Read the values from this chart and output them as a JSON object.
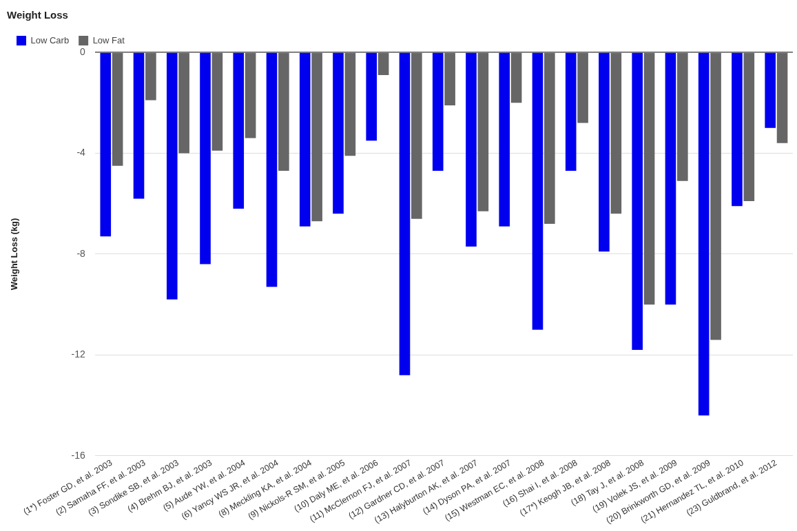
{
  "chart_data": {
    "type": "bar",
    "title": "Weight Loss",
    "ylabel": "Weight Loss (kg)",
    "categories": [
      "(1*) Foster GD, et al. 2003",
      "(2) Samaha FF, et al. 2003",
      "(3) Sondike SB, et al. 2003",
      "(4) Brehm BJ, et al. 2003",
      "(5) Aude YW, et al. 2004",
      "(6) Yancy WS JR, et al. 2004",
      "(8) Meckling KA, et al. 2004",
      "(9) Nickols-R SM, et al. 2005",
      "(10) Daly ME, et al. 2006",
      "(11) McClernon FJ, et al. 2007",
      "(12) Gardner CD, et al. 2007",
      "(13) Halyburton AK, et al. 2007",
      "(14) Dyson PA, et al. 2007",
      "(15) Westman EC, et al. 2008",
      "(16) Shai I, et al. 2008",
      "(17*) Keogh JB, et al. 2008",
      "(18) Tay J, et al. 2008",
      "(19) Volek JS, et al. 2009",
      "(20) Brinkworth GD, et al. 2009",
      "(21) Hernandez TL, et al. 2010",
      "(23) Guldbrand, et al. 2012"
    ],
    "series": [
      {
        "name": "Low Carb",
        "color": "#0000ee",
        "values": [
          -7.3,
          -5.8,
          -9.8,
          -8.4,
          -6.2,
          -9.3,
          -6.9,
          -6.4,
          -3.5,
          -12.8,
          -4.7,
          -7.7,
          -6.9,
          -11.0,
          -4.7,
          -7.9,
          -11.8,
          -10.0,
          -14.4,
          -6.1,
          -3.0
        ]
      },
      {
        "name": "Low Fat",
        "color": "#666666",
        "values": [
          -4.5,
          -1.9,
          -4.0,
          -3.9,
          -3.4,
          -4.7,
          -6.7,
          -4.1,
          -0.9,
          -6.6,
          -2.1,
          -6.3,
          -2.0,
          -6.8,
          -2.8,
          -6.4,
          -10.0,
          -5.1,
          -11.4,
          -5.9,
          -3.6
        ]
      }
    ],
    "ylim": [
      -16,
      0
    ],
    "yticks": [
      0,
      -4,
      -8,
      -12,
      -16
    ],
    "grid": "y",
    "legend": "top left"
  }
}
